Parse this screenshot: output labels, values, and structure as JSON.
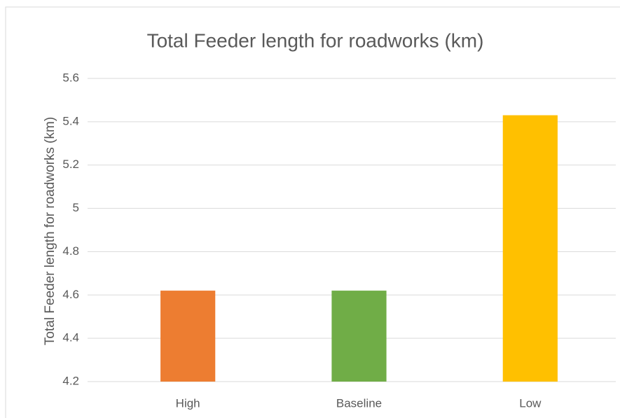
{
  "chart_data": {
    "type": "bar",
    "title": "Total Feeder length for roadworks (km)",
    "y_label": "Total Feeder length for roadworks (km)",
    "categories": [
      "High",
      "Baseline",
      "Low"
    ],
    "values": [
      4.62,
      4.62,
      5.43
    ],
    "colors": [
      "#ed7d31",
      "#70ad47",
      "#ffc000"
    ],
    "ylim": [
      4.2,
      5.6
    ],
    "yticks": [
      4.2,
      4.4,
      4.6,
      4.8,
      5,
      5.2,
      5.4,
      5.6
    ],
    "grid": true
  }
}
